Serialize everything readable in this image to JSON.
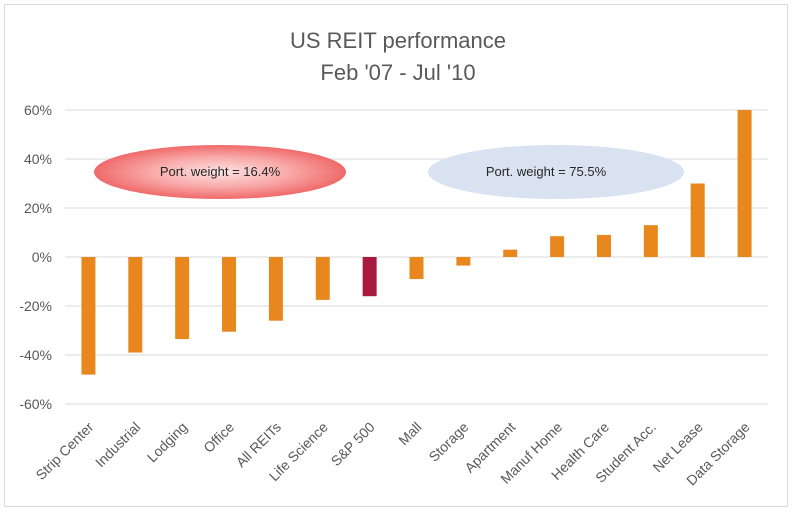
{
  "chart_data": {
    "type": "bar",
    "title": "US REIT performance",
    "subtitle": "Feb '07 - Jul '10",
    "categories": [
      "Strip Center",
      "Industrial",
      "Lodging",
      "Office",
      "All REITs",
      "Life Science",
      "S&P 500",
      "Mall",
      "Storage",
      "Apartment",
      "Manuf Home",
      "Health Care",
      "Student Acc.",
      "Net Lease",
      "Data Storage"
    ],
    "values": [
      -48,
      -39,
      -33.5,
      -30.5,
      -26,
      -17.5,
      -16,
      -9,
      -3.5,
      3,
      8.5,
      9,
      13,
      30,
      60
    ],
    "highlight_category": "S&P 500",
    "bar_color": "#e8871e",
    "highlight_color": "#a8183f",
    "ylim": [
      -60,
      60
    ],
    "yticks": [
      60,
      40,
      20,
      0,
      -20,
      -40,
      -60
    ],
    "ytick_labels": [
      "60%",
      "40%",
      "20%",
      "0%",
      "-20%",
      "-40%",
      "-60%"
    ],
    "grid": true,
    "legend": "none",
    "annotations": [
      {
        "text": "Port. weight = 16.4%",
        "color": "#f06a6a"
      },
      {
        "text": "Port. weight = 75.5%",
        "color": "#d9e2f1"
      }
    ]
  }
}
